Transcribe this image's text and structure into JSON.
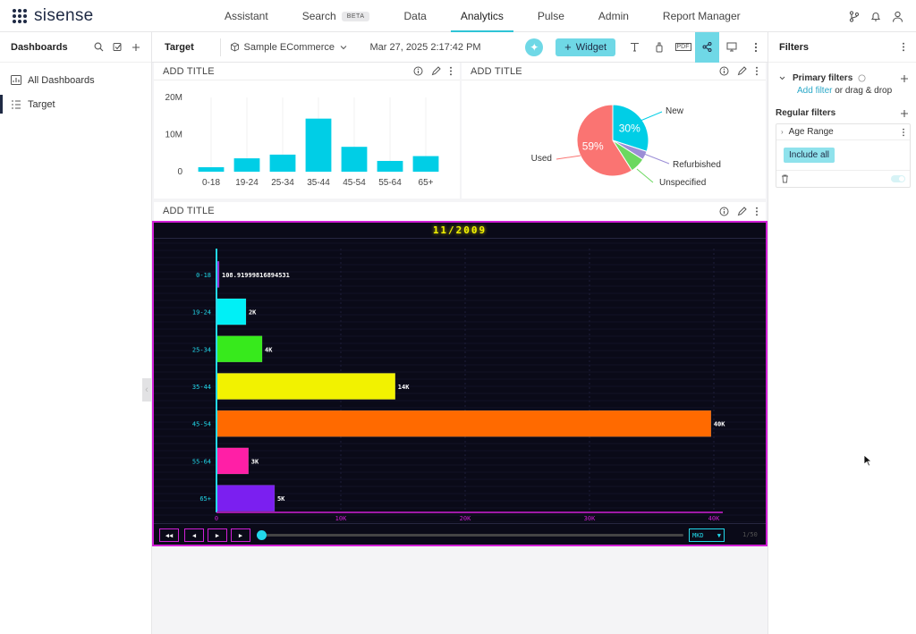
{
  "app": {
    "brand": "sisense"
  },
  "nav": {
    "tabs": [
      {
        "label": "Assistant"
      },
      {
        "label": "Search",
        "badge": "BETA"
      },
      {
        "label": "Data"
      },
      {
        "label": "Analytics",
        "active": true
      },
      {
        "label": "Pulse"
      },
      {
        "label": "Admin"
      },
      {
        "label": "Report Manager"
      }
    ],
    "icons": [
      "branch-icon",
      "bell-icon",
      "user-icon"
    ]
  },
  "left_panel": {
    "title": "Dashboards",
    "items": [
      {
        "label": "All Dashboards",
        "icon": "dashboards-icon"
      },
      {
        "label": "Target",
        "icon": "list-icon",
        "selected": true
      }
    ]
  },
  "toolbar": {
    "dashboard_name": "Target",
    "cube": "Sample ECommerce",
    "date": "Mar 27, 2025 2:17:42 PM",
    "widget_button": "Widget",
    "pdf_label": "PDF"
  },
  "filters": {
    "title": "Filters",
    "primary_title": "Primary filters",
    "add_filter_link": "Add filter",
    "add_filter_suffix": " or drag & drop",
    "regular_title": "Regular filters",
    "age_range": "Age Range",
    "include_all": "Include all"
  },
  "widgets": {
    "bar": {
      "title": "ADD TITLE"
    },
    "pie": {
      "title": "ADD TITLE"
    },
    "race": {
      "title": "ADD TITLE"
    }
  },
  "race": {
    "date_label": "11/2009",
    "select_value": "MKD",
    "counter": "1/50",
    "buttons": [
      "◀◀",
      "◀",
      "▶",
      "▶"
    ]
  },
  "chart_data": [
    {
      "type": "bar",
      "categories": [
        "0-18",
        "19-24",
        "25-34",
        "35-44",
        "45-54",
        "55-64",
        "65+"
      ],
      "values": [
        1.2,
        3.6,
        4.6,
        14.3,
        6.7,
        2.9,
        4.2
      ],
      "ytick_labels": [
        "0",
        "10M",
        "20M"
      ],
      "ylim": [
        0,
        20
      ],
      "color": "#00cee6"
    },
    {
      "type": "pie",
      "slices": [
        {
          "label": "New",
          "value": 30,
          "color": "#00cee6",
          "show_pct": true
        },
        {
          "label": "Refurbished",
          "value": 4,
          "color": "#9b8ed6"
        },
        {
          "label": "Unspecified",
          "value": 7,
          "color": "#6bd860"
        },
        {
          "label": "Used",
          "value": 59,
          "color": "#fa7472",
          "show_pct": true
        }
      ]
    },
    {
      "type": "bar",
      "orientation": "horizontal",
      "categories": [
        "0-18",
        "19-24",
        "25-34",
        "35-44",
        "45-54",
        "55-64",
        "65+"
      ],
      "values": [
        108.91999816894531,
        2300,
        3600,
        14300,
        39700,
        2500,
        4600
      ],
      "value_labels": [
        "108.91999816894531",
        "2K",
        "4K",
        "14K",
        "40K",
        "3K",
        "5K"
      ],
      "colors": [
        "#8e2bd8",
        "#00f0f6",
        "#37ea1c",
        "#f2f200",
        "#ff6a00",
        "#ff1fa6",
        "#7b1ff0"
      ],
      "xtick_labels": [
        "0",
        "10K",
        "20K",
        "30K",
        "40K"
      ],
      "xlim": [
        0,
        40000
      ]
    }
  ]
}
